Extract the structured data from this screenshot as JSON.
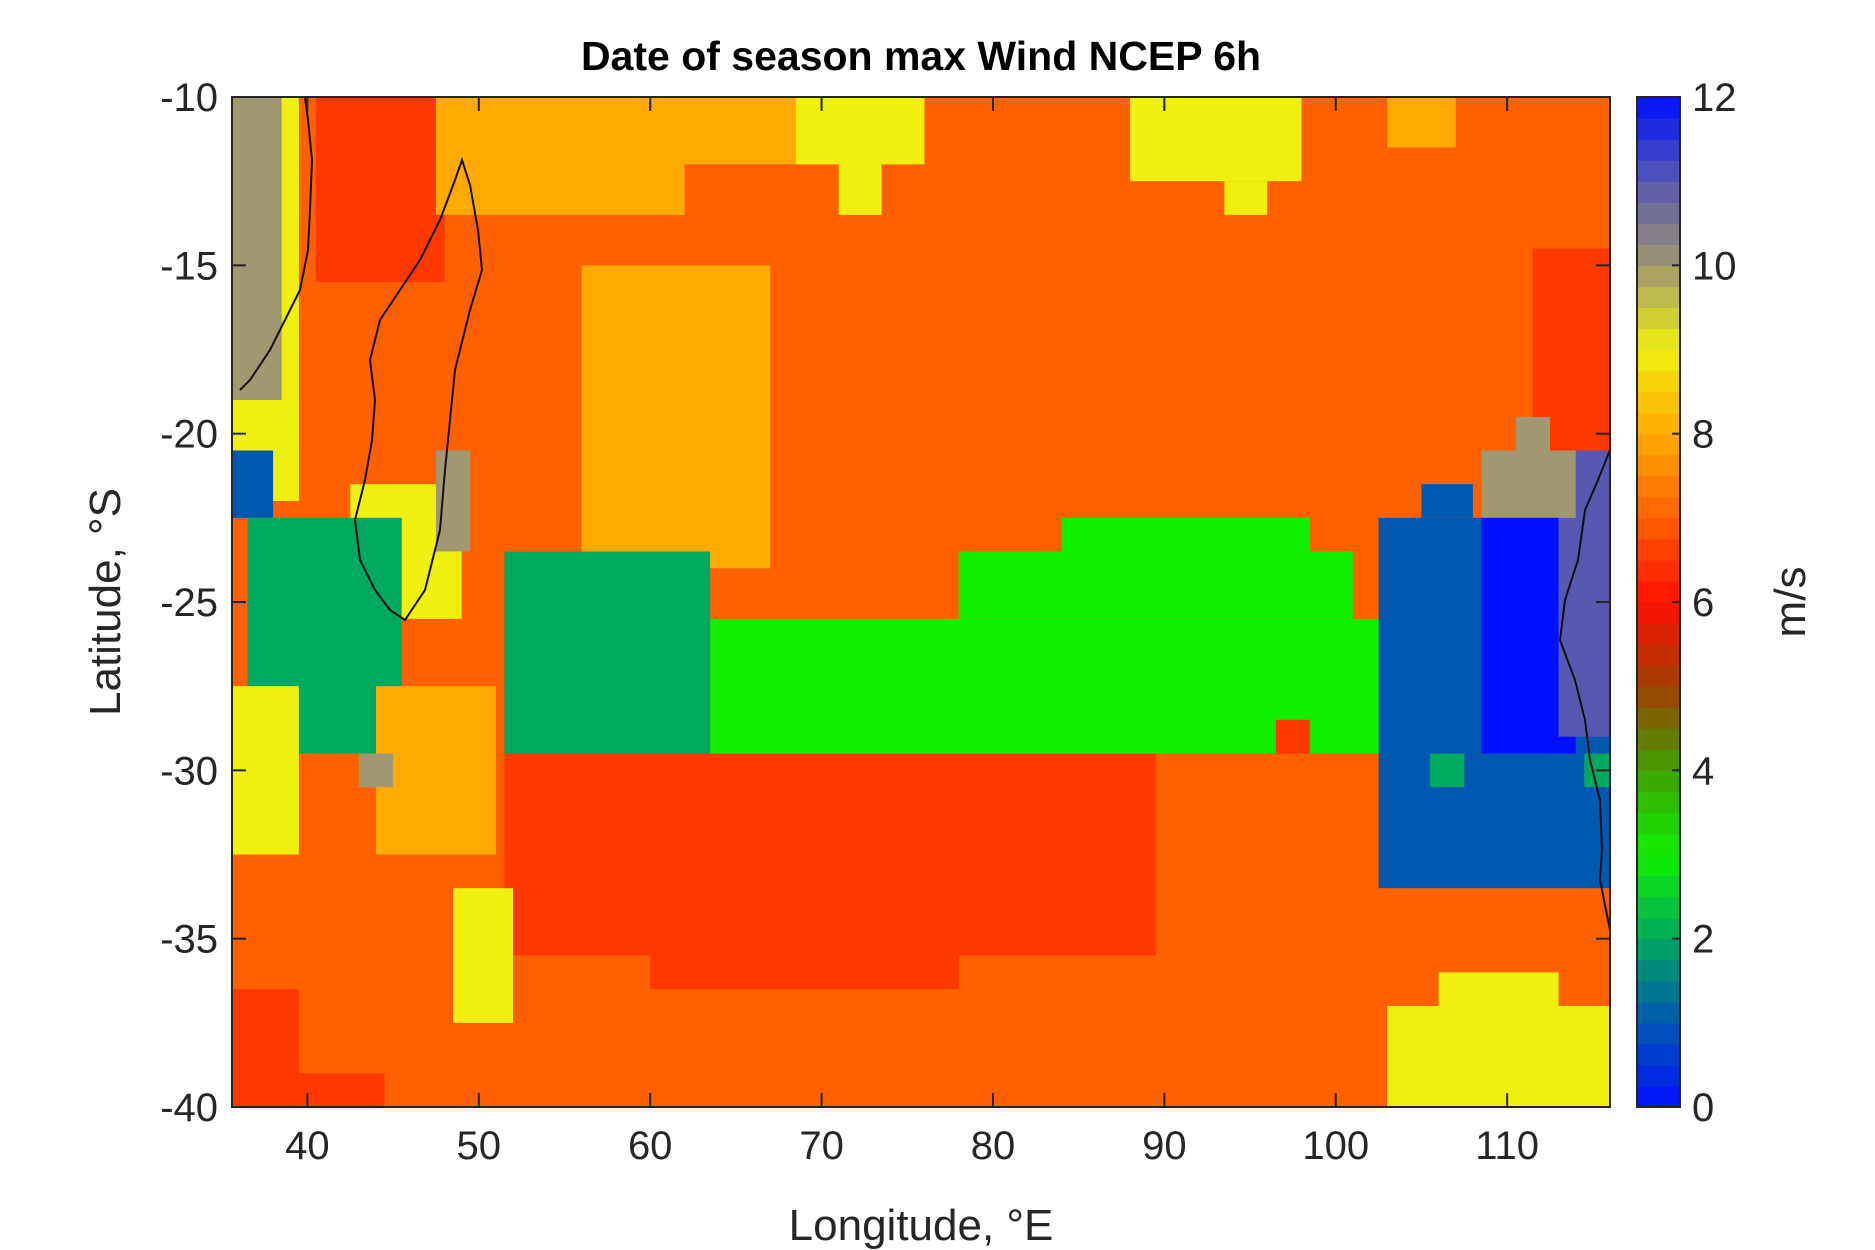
{
  "chart_data": {
    "type": "heatmap",
    "title": "Date of season max Wind NCEP 6h",
    "xlabel": "Longitude, °E",
    "ylabel": "Latitude, °S",
    "colorbar_label": "m/s",
    "xlim": [
      35.6,
      116
    ],
    "ylim": [
      -40,
      -10
    ],
    "xticks": [
      40,
      50,
      60,
      70,
      80,
      90,
      100,
      110
    ],
    "yticks": [
      -40,
      -35,
      -30,
      -25,
      -20,
      -15,
      -10
    ],
    "clim": [
      0,
      12
    ],
    "cticks": [
      0,
      2,
      4,
      6,
      8,
      10,
      12
    ],
    "grid": false,
    "colormap": [
      {
        "v": 0,
        "color": "#0010ff"
      },
      {
        "v": 1,
        "color": "#0058b0"
      },
      {
        "v": 2,
        "color": "#00a860"
      },
      {
        "v": 3,
        "color": "#10f000"
      },
      {
        "v": 4,
        "color": "#40a000"
      },
      {
        "v": 5,
        "color": "#a04000"
      },
      {
        "v": 6,
        "color": "#ff1000"
      },
      {
        "v": 7,
        "color": "#ff6000"
      },
      {
        "v": 8,
        "color": "#ffaa00"
      },
      {
        "v": 9,
        "color": "#f0f010"
      },
      {
        "v": 10,
        "color": "#a09870"
      },
      {
        "v": 11,
        "color": "#5858b0"
      },
      {
        "v": 12,
        "color": "#0010ff"
      }
    ],
    "background_value": 7,
    "regions": [
      {
        "name": "madagascar-north-red",
        "value": 6.5,
        "lon": [
          40.5,
          48
        ],
        "lat": [
          -15.5,
          -10
        ]
      },
      {
        "name": "east-red",
        "value": 6.5,
        "lon": [
          111.5,
          116
        ],
        "lat": [
          -20.5,
          -14.5
        ]
      },
      {
        "name": "north-orange-west",
        "value": 8,
        "lon": [
          47.5,
          62
        ],
        "lat": [
          -13.5,
          -10
        ]
      },
      {
        "name": "north-orange-center",
        "value": 8,
        "lon": [
          56,
          67
        ],
        "lat": [
          -24,
          -15
        ]
      },
      {
        "name": "north-orange-strip",
        "value": 8,
        "lon": [
          62,
          75
        ],
        "lat": [
          -12,
          -10
        ]
      },
      {
        "name": "north-orange-east",
        "value": 8,
        "lon": [
          103,
          107
        ],
        "lat": [
          -11.5,
          -10
        ]
      },
      {
        "name": "yellow-north-1",
        "value": 9,
        "lon": [
          68.5,
          76
        ],
        "lat": [
          -12,
          -10
        ]
      },
      {
        "name": "yellow-north-1b",
        "value": 9,
        "lon": [
          71,
          73.5
        ],
        "lat": [
          -13.5,
          -12
        ]
      },
      {
        "name": "yellow-north-2",
        "value": 9,
        "lon": [
          88,
          98
        ],
        "lat": [
          -12.5,
          -10
        ]
      },
      {
        "name": "yellow-north-2b",
        "value": 9,
        "lon": [
          93.5,
          96
        ],
        "lat": [
          -13.5,
          -12.5
        ]
      },
      {
        "name": "yellow-west-top",
        "value": 9,
        "lon": [
          35.6,
          39.5
        ],
        "lat": [
          -22,
          -10
        ]
      },
      {
        "name": "gray-west-top",
        "value": 10,
        "lon": [
          35.6,
          38.5
        ],
        "lat": [
          -19,
          -10
        ]
      },
      {
        "name": "blue-west",
        "value": 1,
        "lon": [
          35.6,
          38
        ],
        "lat": [
          -22.5,
          -20.5
        ]
      },
      {
        "name": "yellow-mozambique-channel",
        "value": 9,
        "lon": [
          42.5,
          49
        ],
        "lat": [
          -25.5,
          -21.5
        ]
      },
      {
        "name": "gray-mozambique",
        "value": 10,
        "lon": [
          47.5,
          49.5
        ],
        "lat": [
          -23.5,
          -20.5
        ]
      },
      {
        "name": "green-west",
        "value": 2,
        "lon": [
          36.5,
          45.5
        ],
        "lat": [
          -29.5,
          -22.5
        ]
      },
      {
        "name": "green-mid-west",
        "value": 2,
        "lon": [
          51.5,
          63.5
        ],
        "lat": [
          -29.5,
          -23.5
        ]
      },
      {
        "name": "bright-green-band",
        "value": 3,
        "lon": [
          63.5,
          103
        ],
        "lat": [
          -29.5,
          -25.5
        ]
      },
      {
        "name": "bright-green-upper",
        "value": 3,
        "lon": [
          78,
          101
        ],
        "lat": [
          -25.5,
          -23.5
        ]
      },
      {
        "name": "bright-green-upper-2",
        "value": 3,
        "lon": [
          84,
          98.5
        ],
        "lat": [
          -23.5,
          -22.5
        ]
      },
      {
        "name": "orange-mid",
        "value": 8,
        "lon": [
          44,
          51
        ],
        "lat": [
          -32.5,
          -27.5
        ]
      },
      {
        "name": "yellow-west-lower",
        "value": 9,
        "lon": [
          35.6,
          39.5
        ],
        "lat": [
          -32.5,
          -27.5
        ]
      },
      {
        "name": "gray-small",
        "value": 10,
        "lon": [
          43,
          45
        ],
        "lat": [
          -30.5,
          -29.5
        ]
      },
      {
        "name": "red-south-center",
        "value": 6.5,
        "lon": [
          51.5,
          89.5
        ],
        "lat": [
          -35.5,
          -29.5
        ]
      },
      {
        "name": "red-south-lower",
        "value": 6.5,
        "lon": [
          60,
          78
        ],
        "lat": [
          -36.5,
          -35.5
        ]
      },
      {
        "name": "yellow-south-west",
        "value": 9,
        "lon": [
          48.5,
          52
        ],
        "lat": [
          -37.5,
          -33.5
        ]
      },
      {
        "name": "red-southwest-corner",
        "value": 6.5,
        "lon": [
          35.6,
          39.5
        ],
        "lat": [
          -40,
          -36.5
        ]
      },
      {
        "name": "red-small-bottom",
        "value": 6.5,
        "lon": [
          38.5,
          44.5
        ],
        "lat": [
          -40,
          -39
        ]
      },
      {
        "name": "blue-east",
        "value": 1,
        "lon": [
          102.5,
          116
        ],
        "lat": [
          -33.5,
          -22.5
        ]
      },
      {
        "name": "blue-east-top",
        "value": 1,
        "lon": [
          105,
          108
        ],
        "lat": [
          -22.5,
          -21.5
        ]
      },
      {
        "name": "bright-blue-east",
        "value": 0,
        "lon": [
          108.5,
          114
        ],
        "lat": [
          -29.5,
          -21.5
        ]
      },
      {
        "name": "slate-east",
        "value": 11,
        "lon": [
          113,
          116
        ],
        "lat": [
          -29,
          -20.5
        ]
      },
      {
        "name": "gray-east-cross",
        "value": 10,
        "lon": [
          108.5,
          114
        ],
        "lat": [
          -22.5,
          -20.5
        ]
      },
      {
        "name": "gray-east-top",
        "value": 10,
        "lon": [
          110.5,
          112.5
        ],
        "lat": [
          -20.5,
          -19.5
        ]
      },
      {
        "name": "green-east-small",
        "value": 2,
        "lon": [
          105.5,
          107.5
        ],
        "lat": [
          -30.5,
          -29.5
        ]
      },
      {
        "name": "green-east-small-2",
        "value": 2,
        "lon": [
          114.5,
          116
        ],
        "lat": [
          -30.5,
          -29.5
        ]
      },
      {
        "name": "red-east-small",
        "value": 6.5,
        "lon": [
          96.5,
          98.5
        ],
        "lat": [
          -29.5,
          -28.5
        ]
      },
      {
        "name": "yellow-southeast",
        "value": 9,
        "lon": [
          103,
          116
        ],
        "lat": [
          -40,
          -37
        ]
      },
      {
        "name": "yellow-southeast-top",
        "value": 9,
        "lon": [
          106,
          113
        ],
        "lat": [
          -37,
          -36
        ]
      }
    ]
  }
}
